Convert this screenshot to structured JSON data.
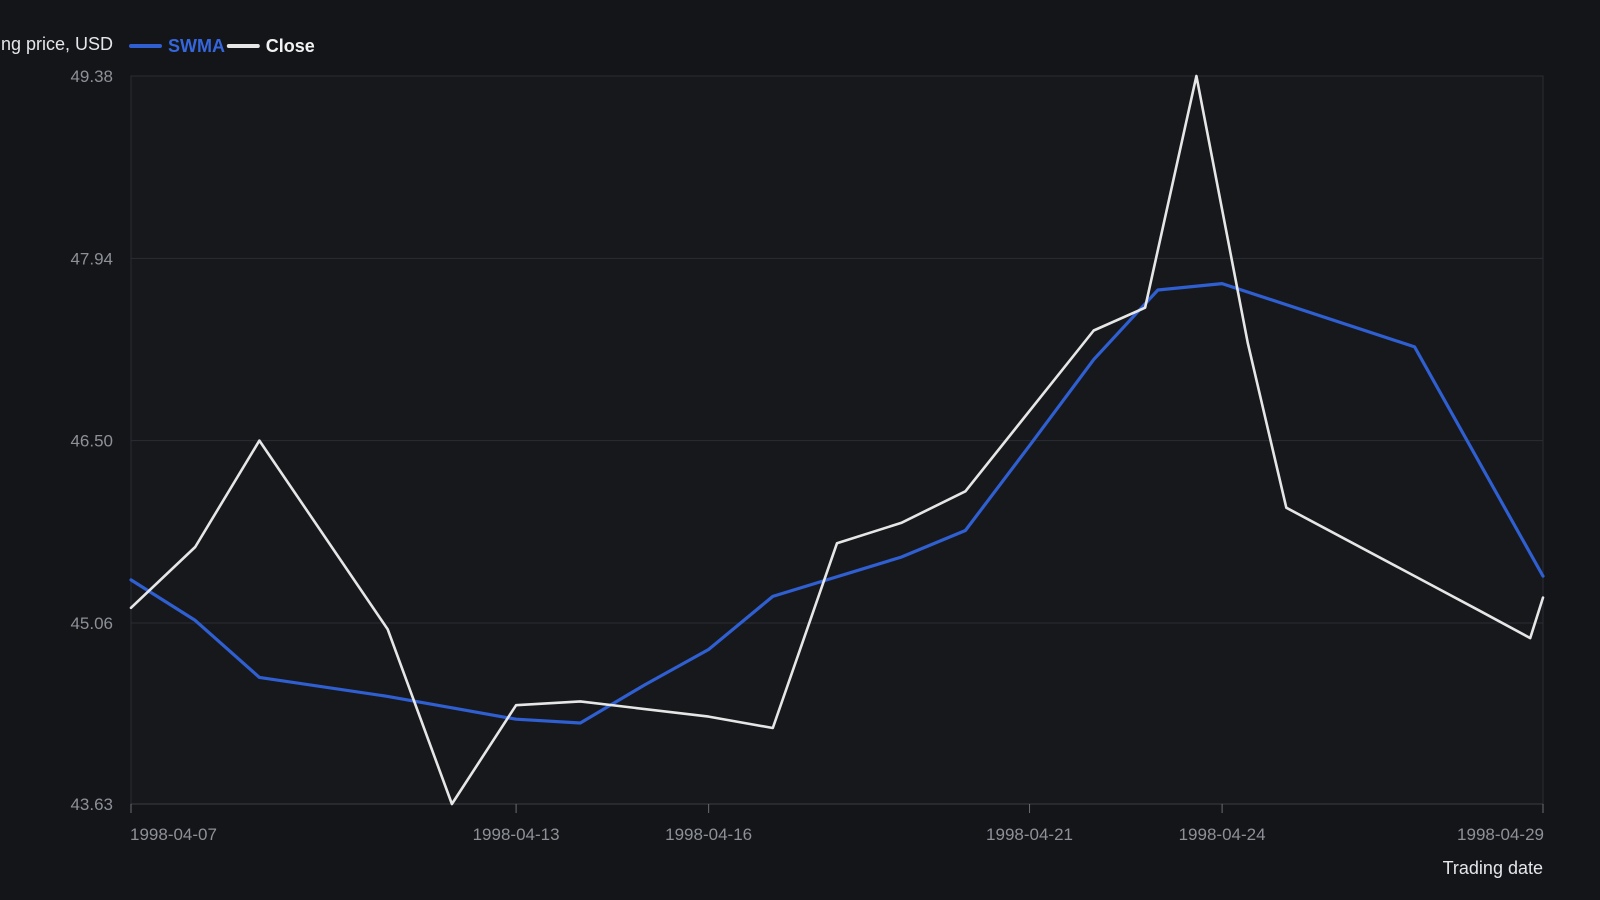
{
  "chart_data": {
    "type": "line",
    "ylabel": "Closing price, USD",
    "xlabel": "Trading date",
    "ylim": [
      43.63,
      49.38
    ],
    "y_ticks": [
      "43.63",
      "45.06",
      "46.50",
      "47.94",
      "49.38"
    ],
    "x_ticks": [
      "1998-04-07",
      "1998-04-13",
      "1998-04-16",
      "1998-04-21",
      "1998-04-24",
      "1998-04-29"
    ],
    "xlim": [
      "1998-04-07",
      "1998-04-29"
    ],
    "grid": true,
    "legend_position": "top-left",
    "series": [
      {
        "name": "SWMA",
        "color": "#2f5fd0",
        "points": [
          [
            "1998-04-07",
            45.4
          ],
          [
            "1998-04-08",
            45.08
          ],
          [
            "1998-04-09",
            44.63
          ],
          [
            "1998-04-11",
            44.48
          ],
          [
            "1998-04-12",
            44.39
          ],
          [
            "1998-04-13",
            44.3
          ],
          [
            "1998-04-14",
            44.27
          ],
          [
            "1998-04-15",
            44.57
          ],
          [
            "1998-04-16",
            44.85
          ],
          [
            "1998-04-17",
            45.27
          ],
          [
            "1998-04-19",
            45.58
          ],
          [
            "1998-04-20",
            45.79
          ],
          [
            "1998-04-21",
            46.46
          ],
          [
            "1998-04-22",
            47.14
          ],
          [
            "1998-04-23",
            47.69
          ],
          [
            "1998-04-24",
            47.74
          ],
          [
            "1998-04-27",
            47.24
          ],
          [
            "1998-04-29",
            45.43
          ]
        ]
      },
      {
        "name": "Close",
        "color": "#e6e6e6",
        "points": [
          [
            "1998-04-07",
            45.18
          ],
          [
            "1998-04-08",
            45.66
          ],
          [
            "1998-04-09",
            46.5
          ],
          [
            "1998-04-11",
            45.01
          ],
          [
            "1998-04-12",
            43.63
          ],
          [
            "1998-04-13",
            44.41
          ],
          [
            "1998-04-14",
            44.44
          ],
          [
            "1998-04-16",
            44.32
          ],
          [
            "1998-04-17",
            44.23
          ],
          [
            "1998-04-18",
            45.69
          ],
          [
            "1998-04-19",
            45.85
          ],
          [
            "1998-04-20",
            46.1
          ],
          [
            "1998-04-22",
            47.37
          ],
          [
            "1998-04-22.8",
            47.55
          ],
          [
            "1998-04-23.6",
            49.38
          ],
          [
            "1998-04-24.4",
            47.27
          ],
          [
            "1998-04-25",
            45.97
          ],
          [
            "1998-04-28",
            45.16
          ],
          [
            "1998-04-28.8",
            44.94
          ],
          [
            "1998-04-29",
            45.26
          ]
        ]
      }
    ]
  }
}
